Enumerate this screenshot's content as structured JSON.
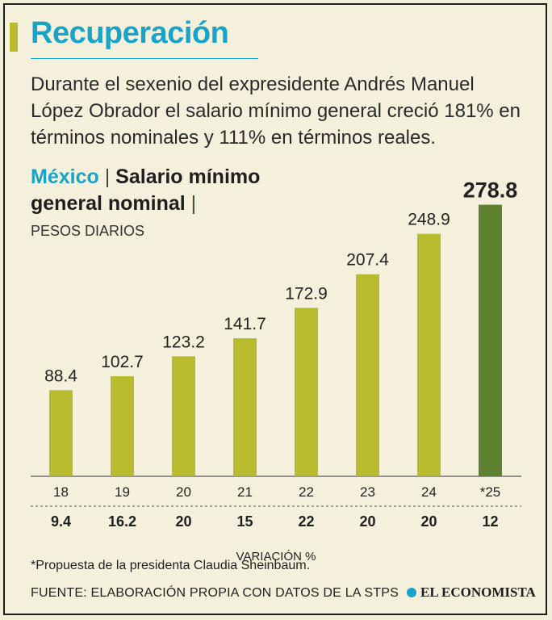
{
  "header": {
    "title": "Recuperación",
    "intro": "Durante el sexenio del expresidente Andrés Manuel López Obrador el salario mínimo general creció 181% en términos nominales y 111% en términos reales."
  },
  "chart_title": {
    "country": "México",
    "separator": "|",
    "series_title": "Salario mínimo general nominal",
    "trailing_separator": "|",
    "unit": "PESOS DIARIOS"
  },
  "chart_data": {
    "type": "bar",
    "categories": [
      "18",
      "19",
      "20",
      "21",
      "22",
      "23",
      "24",
      "*25"
    ],
    "values": [
      88.4,
      102.7,
      123.2,
      141.7,
      172.9,
      207.4,
      248.9,
      278.8
    ],
    "value_labels": [
      "88.4",
      "102.7",
      "123.2",
      "141.7",
      "172.9",
      "207.4",
      "248.9",
      "278.8"
    ],
    "variation": [
      "9.4",
      "16.2",
      "20",
      "15",
      "22",
      "20",
      "20",
      "12"
    ],
    "variation_label": "VARIACIÓN %",
    "highlight_index": 7,
    "ylim": [
      0,
      300
    ],
    "grid": false,
    "colors": {
      "bar": "#b7bb2d",
      "highlight": "#5f8231"
    }
  },
  "footer": {
    "note": "*Propuesta de la presidenta Claudia Sheinbaum.",
    "source": "FUENTE: ELABORACIÓN PROPIA CON DATOS DE LA STPS",
    "brand": "EL ECONOMISTA"
  },
  "colors": {
    "accent": "#1aa3c9",
    "background": "#f5f0dc",
    "text": "#222222"
  }
}
